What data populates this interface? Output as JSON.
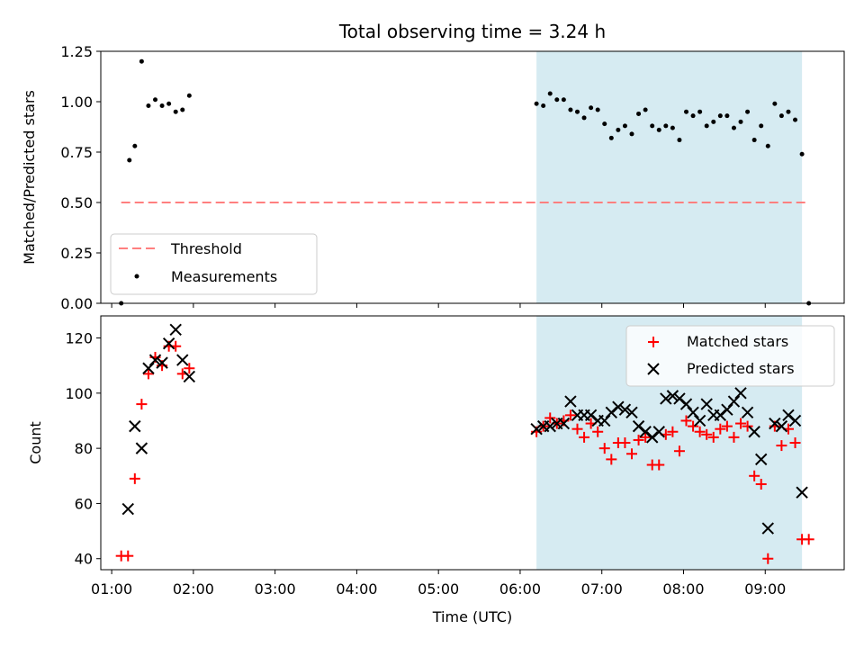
{
  "chart_data": [
    {
      "type": "scatter",
      "title": "Total observing time = 3.24 h",
      "ylabel": "Matched/Predicted stars",
      "xlabel": "",
      "ylim": [
        0,
        1.25
      ],
      "y_ticks": [
        "0.00",
        "0.25",
        "0.50",
        "0.75",
        "1.00",
        "1.25"
      ],
      "shaded_region": {
        "start": "06:12",
        "end": "09:27",
        "color": "#add8e6"
      },
      "threshold": {
        "name": "Threshold",
        "value": 0.5,
        "x_start": "01:07",
        "x_end": "09:32",
        "color": "#ff7f7f"
      },
      "series": [
        {
          "name": "Measurements",
          "color": "#000000",
          "points": [
            [
              "01:07",
              0.0
            ],
            [
              "01:13",
              0.71
            ],
            [
              "01:17",
              0.78
            ],
            [
              "01:22",
              1.2
            ],
            [
              "01:27",
              0.98
            ],
            [
              "01:32",
              1.01
            ],
            [
              "01:37",
              0.98
            ],
            [
              "01:42",
              0.99
            ],
            [
              "01:47",
              0.95
            ],
            [
              "01:52",
              0.96
            ],
            [
              "01:57",
              1.03
            ],
            [
              "06:12",
              0.99
            ],
            [
              "06:17",
              0.98
            ],
            [
              "06:22",
              1.04
            ],
            [
              "06:27",
              1.01
            ],
            [
              "06:32",
              1.01
            ],
            [
              "06:37",
              0.96
            ],
            [
              "06:42",
              0.95
            ],
            [
              "06:47",
              0.92
            ],
            [
              "06:52",
              0.97
            ],
            [
              "06:57",
              0.96
            ],
            [
              "07:02",
              0.89
            ],
            [
              "07:07",
              0.82
            ],
            [
              "07:12",
              0.86
            ],
            [
              "07:17",
              0.88
            ],
            [
              "07:22",
              0.84
            ],
            [
              "07:27",
              0.94
            ],
            [
              "07:32",
              0.96
            ],
            [
              "07:37",
              0.88
            ],
            [
              "07:42",
              0.86
            ],
            [
              "07:47",
              0.88
            ],
            [
              "07:52",
              0.87
            ],
            [
              "07:57",
              0.81
            ],
            [
              "08:02",
              0.95
            ],
            [
              "08:07",
              0.93
            ],
            [
              "08:12",
              0.95
            ],
            [
              "08:17",
              0.88
            ],
            [
              "08:22",
              0.9
            ],
            [
              "08:27",
              0.93
            ],
            [
              "08:32",
              0.93
            ],
            [
              "08:37",
              0.87
            ],
            [
              "08:42",
              0.9
            ],
            [
              "08:47",
              0.95
            ],
            [
              "08:52",
              0.81
            ],
            [
              "08:57",
              0.88
            ],
            [
              "09:02",
              0.78
            ],
            [
              "09:07",
              0.99
            ],
            [
              "09:12",
              0.93
            ],
            [
              "09:17",
              0.95
            ],
            [
              "09:22",
              0.91
            ],
            [
              "09:27",
              0.74
            ],
            [
              "09:32",
              0.0
            ]
          ]
        }
      ],
      "legend": {
        "position": "lower-left",
        "entries": [
          "Threshold",
          "Measurements"
        ]
      }
    },
    {
      "type": "scatter",
      "title": "",
      "ylabel": "Count",
      "xlabel": "Time (UTC)",
      "ylim": [
        36,
        128
      ],
      "y_ticks": [
        "40",
        "60",
        "80",
        "100",
        "120"
      ],
      "x_ticks": [
        "01:00",
        "02:00",
        "03:00",
        "04:00",
        "05:00",
        "06:00",
        "07:00",
        "08:00",
        "09:00"
      ],
      "xlim": [
        "00:52",
        "09:58"
      ],
      "shaded_region": {
        "start": "06:12",
        "end": "09:27",
        "color": "#add8e6"
      },
      "series": [
        {
          "name": "Matched stars",
          "marker": "+",
          "color": "#ff0000",
          "points": [
            [
              "01:07",
              41
            ],
            [
              "01:12",
              41
            ],
            [
              "01:17",
              69
            ],
            [
              "01:22",
              96
            ],
            [
              "01:27",
              107
            ],
            [
              "01:32",
              113
            ],
            [
              "01:37",
              110
            ],
            [
              "01:42",
              117
            ],
            [
              "01:47",
              117
            ],
            [
              "01:52",
              107
            ],
            [
              "01:57",
              109
            ],
            [
              "06:12",
              86
            ],
            [
              "06:17",
              88
            ],
            [
              "06:22",
              91
            ],
            [
              "06:27",
              89
            ],
            [
              "06:32",
              90
            ],
            [
              "06:37",
              92
            ],
            [
              "06:42",
              87
            ],
            [
              "06:47",
              84
            ],
            [
              "06:52",
              89
            ],
            [
              "06:57",
              86
            ],
            [
              "07:02",
              80
            ],
            [
              "07:07",
              76
            ],
            [
              "07:12",
              82
            ],
            [
              "07:17",
              82
            ],
            [
              "07:22",
              78
            ],
            [
              "07:27",
              83
            ],
            [
              "07:32",
              84
            ],
            [
              "07:37",
              74
            ],
            [
              "07:42",
              74
            ],
            [
              "07:47",
              85
            ],
            [
              "07:52",
              86
            ],
            [
              "07:57",
              79
            ],
            [
              "08:02",
              90
            ],
            [
              "08:07",
              88
            ],
            [
              "08:12",
              86
            ],
            [
              "08:17",
              85
            ],
            [
              "08:22",
              84
            ],
            [
              "08:27",
              87
            ],
            [
              "08:32",
              88
            ],
            [
              "08:37",
              84
            ],
            [
              "08:42",
              89
            ],
            [
              "08:47",
              88
            ],
            [
              "08:52",
              70
            ],
            [
              "08:57",
              67
            ],
            [
              "09:02",
              40
            ],
            [
              "09:07",
              88
            ],
            [
              "09:12",
              81
            ],
            [
              "09:17",
              87
            ],
            [
              "09:22",
              82
            ],
            [
              "09:27",
              47
            ],
            [
              "09:32",
              47
            ]
          ]
        },
        {
          "name": "Predicted stars",
          "marker": "x",
          "color": "#000000",
          "points": [
            [
              "01:12",
              58
            ],
            [
              "01:17",
              88
            ],
            [
              "01:22",
              80
            ],
            [
              "01:27",
              109
            ],
            [
              "01:32",
              112
            ],
            [
              "01:37",
              111
            ],
            [
              "01:42",
              118
            ],
            [
              "01:47",
              123
            ],
            [
              "01:52",
              112
            ],
            [
              "01:57",
              106
            ],
            [
              "06:12",
              87
            ],
            [
              "06:17",
              88
            ],
            [
              "06:22",
              88
            ],
            [
              "06:27",
              89
            ],
            [
              "06:32",
              89
            ],
            [
              "06:37",
              97
            ],
            [
              "06:42",
              92
            ],
            [
              "06:47",
              92
            ],
            [
              "06:52",
              92
            ],
            [
              "06:57",
              90
            ],
            [
              "07:02",
              90
            ],
            [
              "07:07",
              93
            ],
            [
              "07:12",
              95
            ],
            [
              "07:17",
              94
            ],
            [
              "07:22",
              93
            ],
            [
              "07:27",
              88
            ],
            [
              "07:32",
              86
            ],
            [
              "07:37",
              84
            ],
            [
              "07:42",
              86
            ],
            [
              "07:47",
              98
            ],
            [
              "07:52",
              99
            ],
            [
              "07:57",
              98
            ],
            [
              "08:02",
              96
            ],
            [
              "08:07",
              93
            ],
            [
              "08:12",
              90
            ],
            [
              "08:17",
              96
            ],
            [
              "08:22",
              92
            ],
            [
              "08:27",
              92
            ],
            [
              "08:32",
              94
            ],
            [
              "08:37",
              97
            ],
            [
              "08:42",
              100
            ],
            [
              "08:47",
              93
            ],
            [
              "08:52",
              86
            ],
            [
              "08:57",
              76
            ],
            [
              "09:02",
              51
            ],
            [
              "09:07",
              89
            ],
            [
              "09:12",
              88
            ],
            [
              "09:17",
              92
            ],
            [
              "09:22",
              90
            ],
            [
              "09:27",
              64
            ]
          ]
        }
      ],
      "legend": {
        "position": "upper-right",
        "entries": [
          "Matched stars",
          "Predicted stars"
        ]
      }
    }
  ]
}
